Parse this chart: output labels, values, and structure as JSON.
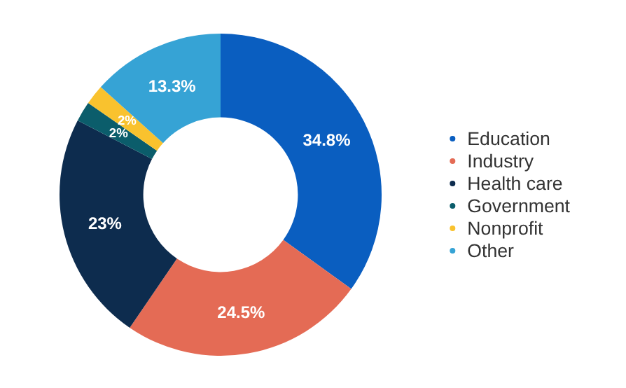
{
  "chart_data": {
    "type": "donut",
    "categories": [
      "Education",
      "Industry",
      "Health care",
      "Government",
      "Nonprofit",
      "Other"
    ],
    "values": [
      34.8,
      24.5,
      23,
      2,
      2,
      13.3
    ],
    "value_labels": [
      "34.8%",
      "24.5%",
      "23%",
      "2%",
      "2%",
      "13.3%"
    ],
    "colors": [
      "#0a5ec0",
      "#e46b55",
      "#0d2c4e",
      "#0b5d6b",
      "#f9c22e",
      "#36a3d5"
    ],
    "legend": "right"
  }
}
